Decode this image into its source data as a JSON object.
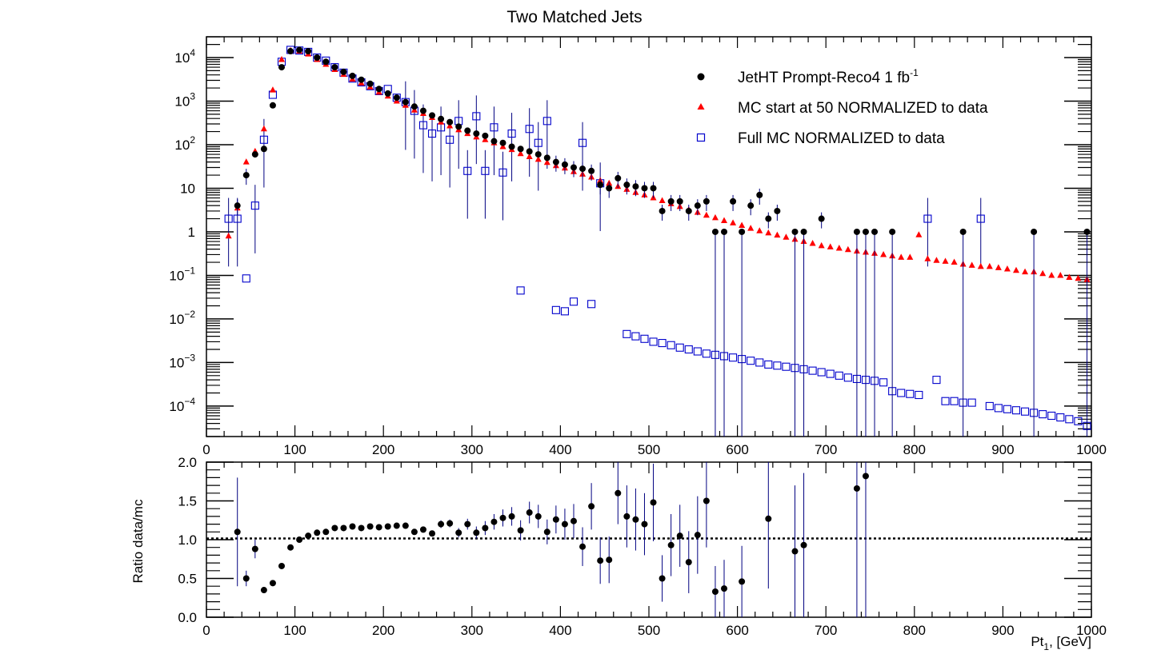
{
  "title": "Two Matched Jets",
  "colors": {
    "data": "#000000",
    "mc50": "#ff0000",
    "fullmc": "#0000cc",
    "errbar": "#000080"
  },
  "x_axis": {
    "label_main": "Pt",
    "label_sub": "1",
    "label_suffix": ", [GeV]",
    "ticks": [
      "0",
      "100",
      "200",
      "300",
      "400",
      "500",
      "600",
      "700",
      "800",
      "900",
      "1000"
    ]
  },
  "legend": {
    "entries": [
      {
        "label": "JetHT Prompt-Reco4 1 fb",
        "superscript": "-1",
        "marker": "filled-circle"
      },
      {
        "label": "MC start at 50 NORMALIZED to data",
        "marker": "filled-triangle"
      },
      {
        "label": "Full MC NORMALIZED to data",
        "marker": "open-square"
      }
    ]
  },
  "y_ticks_main": [
    {
      "base": "10",
      "exp": "4",
      "value": 10000
    },
    {
      "base": "10",
      "exp": "3",
      "value": 1000
    },
    {
      "base": "10",
      "exp": "2",
      "value": 100
    },
    {
      "base": "10",
      "exp": "",
      "value": 10
    },
    {
      "base": "1",
      "exp": "",
      "value": 1
    },
    {
      "base": "10",
      "exp": "−1",
      "value": 0.1
    },
    {
      "base": "10",
      "exp": "−2",
      "value": 0.01
    },
    {
      "base": "10",
      "exp": "−3",
      "value": 0.001
    },
    {
      "base": "10",
      "exp": "−4",
      "value": 0.0001
    }
  ],
  "ratio_y_label": "Ratio data/mc",
  "ratio_ticks": [
    "0.0",
    "0.5",
    "1.0",
    "1.5",
    "2.0"
  ],
  "chart_data": [
    {
      "type": "scatter",
      "title": "Two Matched Jets",
      "xlabel": "Pt1, [GeV]",
      "ylabel": "",
      "xlim": [
        0,
        1000
      ],
      "ylim": [
        2e-05,
        30000
      ],
      "yscale": "log",
      "series": [
        {
          "name": "JetHT Prompt-Reco4 1 fb-1",
          "marker": "filled-circle",
          "x": [
            25,
            35,
            45,
            55,
            65,
            75,
            85,
            95,
            105,
            115,
            125,
            135,
            145,
            155,
            165,
            175,
            185,
            195,
            205,
            215,
            225,
            235,
            245,
            255,
            265,
            275,
            285,
            295,
            305,
            315,
            325,
            335,
            345,
            355,
            365,
            375,
            385,
            395,
            405,
            415,
            425,
            435,
            445,
            455,
            465,
            475,
            485,
            495,
            505,
            515,
            525,
            535,
            545,
            555,
            565,
            575,
            585,
            595,
            605,
            615,
            625,
            635,
            645,
            655,
            665,
            675,
            685,
            695,
            705,
            715,
            725,
            735,
            745,
            755,
            765,
            775,
            785,
            795,
            805,
            815,
            825,
            835,
            845,
            855,
            865,
            875,
            885,
            895,
            905,
            915,
            925,
            935,
            945,
            955,
            965,
            975,
            985,
            995
          ],
          "y": [
            null,
            4,
            20,
            60,
            80,
            800,
            6000,
            14000,
            15000,
            14000,
            10000,
            8000,
            6000,
            4700,
            3800,
            3100,
            2500,
            1900,
            1500,
            1200,
            950,
            750,
            600,
            470,
            390,
            330,
            260,
            210,
            180,
            160,
            120,
            110,
            90,
            80,
            70,
            60,
            50,
            40,
            35,
            30,
            28,
            25,
            12,
            10,
            17,
            12,
            11,
            10,
            10,
            3,
            5,
            5,
            3,
            4,
            5,
            1,
            1,
            5,
            1,
            4,
            7,
            2,
            3,
            null,
            1,
            1,
            null,
            2,
            null,
            null,
            null,
            1,
            1,
            1,
            null,
            1,
            null,
            null,
            null,
            null,
            null,
            null,
            null,
            1,
            null,
            null,
            null,
            null,
            null,
            null,
            null,
            1,
            null,
            null,
            null,
            null,
            null,
            1
          ]
        },
        {
          "name": "MC start at 50 NORMALIZED to data",
          "marker": "filled-triangle",
          "x": [
            25,
            35,
            45,
            55,
            65,
            75,
            85,
            95,
            105,
            115,
            125,
            135,
            145,
            155,
            165,
            175,
            185,
            195,
            205,
            215,
            225,
            235,
            245,
            255,
            265,
            275,
            285,
            295,
            305,
            315,
            325,
            335,
            345,
            355,
            365,
            375,
            385,
            395,
            405,
            415,
            425,
            435,
            445,
            455,
            465,
            475,
            485,
            495,
            505,
            515,
            525,
            535,
            545,
            555,
            565,
            575,
            585,
            595,
            605,
            615,
            625,
            635,
            645,
            655,
            665,
            675,
            685,
            695,
            705,
            715,
            725,
            735,
            745,
            755,
            765,
            775,
            785,
            795,
            805,
            815,
            825,
            835,
            845,
            855,
            865,
            875,
            885,
            895,
            905,
            915,
            925,
            935,
            945,
            955,
            965,
            975,
            985,
            995
          ],
          "y": [
            0.8,
            3.5,
            40,
            70,
            230,
            1800,
            9000,
            14500,
            14000,
            12000,
            9000,
            7000,
            5300,
            4100,
            3200,
            2600,
            2100,
            1600,
            1300,
            1000,
            800,
            620,
            520,
            420,
            330,
            270,
            220,
            180,
            150,
            130,
            110,
            90,
            77,
            62,
            53,
            46,
            39,
            33,
            29,
            24,
            21,
            18,
            15,
            13,
            11,
            9.4,
            8,
            7,
            6,
            5.2,
            4.4,
            3.8,
            3.2,
            2.8,
            2.4,
            2.1,
            1.8,
            1.6,
            1.4,
            1.2,
            1.05,
            0.94,
            0.84,
            0.75,
            0.67,
            0.6,
            0.54,
            0.48,
            0.45,
            0.42,
            0.39,
            0.36,
            0.34,
            0.32,
            0.3,
            0.28,
            0.26,
            0.26,
            0.85,
            0.24,
            0.22,
            0.21,
            0.2,
            0.18,
            0.17,
            0.16,
            0.16,
            0.15,
            0.14,
            0.13,
            0.12,
            0.12,
            0.11,
            0.1,
            0.1,
            0.09,
            0.085,
            0.08
          ]
        },
        {
          "name": "Full MC NORMALIZED to data",
          "marker": "open-square",
          "x": [
            25,
            35,
            45,
            55,
            65,
            75,
            85,
            95,
            105,
            115,
            125,
            135,
            145,
            155,
            165,
            175,
            185,
            195,
            205,
            215,
            225,
            235,
            245,
            255,
            265,
            275,
            285,
            295,
            305,
            315,
            325,
            335,
            345,
            355,
            365,
            375,
            385,
            395,
            405,
            415,
            425,
            435,
            445,
            475,
            485,
            495,
            505,
            515,
            525,
            535,
            545,
            555,
            565,
            575,
            585,
            595,
            605,
            615,
            625,
            635,
            645,
            655,
            665,
            675,
            685,
            695,
            705,
            715,
            725,
            735,
            745,
            755,
            765,
            775,
            785,
            795,
            805,
            815,
            825,
            835,
            845,
            855,
            865,
            875,
            885,
            895,
            905,
            915,
            925,
            935,
            945,
            955,
            965,
            975,
            985,
            995
          ],
          "y": [
            2,
            2,
            0.085,
            4,
            130,
            1400,
            8000,
            15000,
            14500,
            13500,
            10000,
            8500,
            6000,
            4500,
            3300,
            2700,
            2200,
            1700,
            1900,
            1200,
            950,
            600,
            280,
            180,
            250,
            130,
            350,
            25,
            450,
            25,
            250,
            23,
            180,
            0.045,
            230,
            110,
            350,
            0.016,
            0.015,
            0.025,
            110,
            0.022,
            13,
            0.0045,
            0.004,
            0.0035,
            0.003,
            0.0028,
            0.0025,
            0.0022,
            0.002,
            0.0018,
            0.0016,
            0.0015,
            0.0014,
            0.0013,
            0.0012,
            0.0011,
            0.001,
            0.0009,
            0.00085,
            0.0008,
            0.00075,
            0.0007,
            0.00065,
            0.0006,
            0.00055,
            0.0005,
            0.00045,
            0.00042,
            0.0004,
            0.00038,
            0.00035,
            0.00022,
            0.0002,
            0.00019,
            0.00018,
            2,
            0.0004,
            0.00013,
            0.00013,
            0.00012,
            0.00012,
            2,
            0.0001,
            9e-05,
            8.5e-05,
            8e-05,
            7.5e-05,
            7e-05,
            6.5e-05,
            6e-05,
            5.5e-05,
            5e-05,
            4.5e-05,
            3.5e-05
          ]
        }
      ]
    },
    {
      "type": "scatter",
      "title": "",
      "xlabel": "Pt1, [GeV]",
      "ylabel": "Ratio data/mc",
      "xlim": [
        0,
        1000
      ],
      "ylim": [
        0.0,
        2.0
      ],
      "reference_line": 1.0,
      "series": [
        {
          "name": "",
          "marker": "filled-circle",
          "x": [
            35,
            45,
            55,
            65,
            75,
            85,
            95,
            105,
            115,
            125,
            135,
            145,
            155,
            165,
            175,
            185,
            195,
            205,
            215,
            225,
            235,
            245,
            255,
            265,
            275,
            285,
            295,
            305,
            315,
            325,
            335,
            345,
            355,
            365,
            375,
            385,
            395,
            405,
            415,
            425,
            435,
            445,
            455,
            465,
            475,
            485,
            495,
            505,
            515,
            525,
            535,
            545,
            555,
            565,
            575,
            585,
            595,
            605,
            635,
            665,
            675,
            735,
            745
          ],
          "y": [
            1.1,
            0.5,
            0.88,
            0.35,
            0.44,
            0.66,
            0.9,
            1.0,
            1.05,
            1.09,
            1.1,
            1.15,
            1.15,
            1.17,
            1.15,
            1.17,
            1.16,
            1.17,
            1.18,
            1.18,
            1.1,
            1.13,
            1.08,
            1.2,
            1.21,
            1.09,
            1.2,
            1.09,
            1.15,
            1.23,
            1.28,
            1.3,
            1.12,
            1.35,
            1.3,
            1.1,
            1.26,
            1.2,
            1.24,
            0.91,
            1.43,
            0.73,
            0.74,
            1.6,
            1.3,
            1.26,
            1.2,
            1.48,
            0.5,
            0.93,
            1.05,
            0.71,
            1.06,
            1.5,
            0.33,
            0.37,
            null,
            0.46,
            1.27,
            0.85,
            0.93,
            1.66,
            1.82
          ],
          "err": [
            0.7,
            0.1,
            0.12,
            0.02,
            0.03,
            0.03,
            0.02,
            0.02,
            0.02,
            0.02,
            0.02,
            0.02,
            0.02,
            0.02,
            0.02,
            0.02,
            0.03,
            0.03,
            0.03,
            0.03,
            0.04,
            0.04,
            0.04,
            0.05,
            0.05,
            0.06,
            0.07,
            0.08,
            0.09,
            0.1,
            0.11,
            0.12,
            0.13,
            0.14,
            0.15,
            0.16,
            0.18,
            0.2,
            0.22,
            0.25,
            0.3,
            0.3,
            0.3,
            0.4,
            0.4,
            0.4,
            0.4,
            0.5,
            0.3,
            0.4,
            0.4,
            0.4,
            0.5,
            0.6,
            0.33,
            0.37,
            null,
            0.46,
            0.9,
            0.85,
            0.93,
            1.66,
            1.82
          ]
        }
      ]
    }
  ]
}
